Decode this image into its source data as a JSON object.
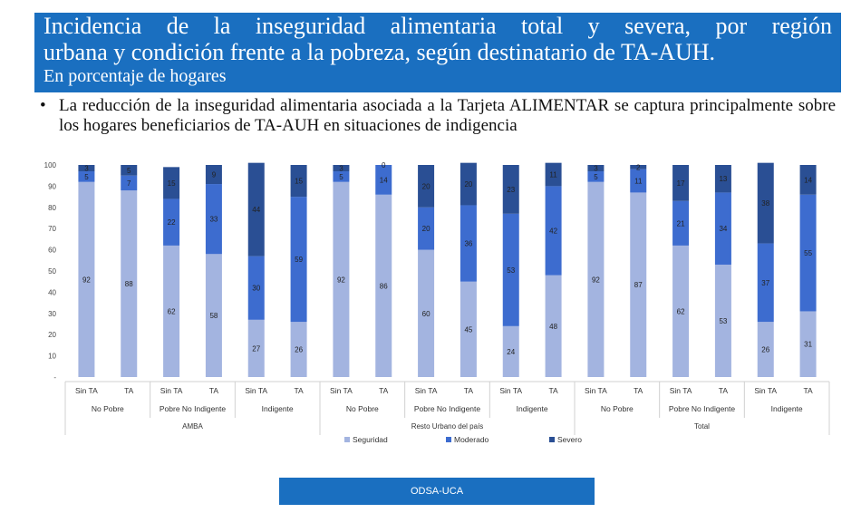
{
  "header": {
    "title_line1": "Incidencia de la inseguridad alimentaria total y severa, por región",
    "title_line2": "urbana y condición frente a la pobreza, según destinatario de TA-AUH.",
    "subtitle": "En porcentaje de hogares"
  },
  "bullet": {
    "marker": "•",
    "text_part1": "La reducción de la inseguridad alimentaria asociada a la Tarjeta ",
    "text_bold1": "ALIMENTAR",
    "text_part2": " se captura principalmente sobre los hogares beneficiarios de ",
    "text_bold2": "TA-AUH",
    "text_part3": " en situaciones de indigencia"
  },
  "chart_data": {
    "type": "bar",
    "stacked": true,
    "y_ticks": [
      "100",
      "90",
      "80",
      "70",
      "60",
      "50",
      "40",
      "30",
      "20",
      "10",
      "-"
    ],
    "ylim": [
      0,
      100
    ],
    "categories": [
      "Sin TA",
      "TA",
      "Sin TA",
      "TA",
      "Sin TA",
      "TA",
      "Sin TA",
      "TA",
      "Sin TA",
      "TA",
      "Sin TA",
      "TA",
      "Sin TA",
      "TA",
      "Sin TA",
      "TA",
      "Sin TA",
      "TA"
    ],
    "groups": [
      "No Pobre",
      "Pobre No Indigente",
      "Indigente",
      "No Pobre",
      "Pobre No Indigente",
      "Indigente",
      "No Pobre",
      "Pobre No Indigente",
      "Indigente"
    ],
    "regions": [
      "AMBA",
      "Resto Urbano del país",
      "Total"
    ],
    "series": [
      {
        "name": "Seguridad",
        "color": "#a3b4e0",
        "values": [
          92,
          88,
          62,
          58,
          27,
          26,
          92,
          86,
          60,
          45,
          24,
          48,
          92,
          87,
          62,
          53,
          26,
          31
        ]
      },
      {
        "name": "Moderado",
        "color": "#3d6ccf",
        "values": [
          5,
          7,
          22,
          33,
          30,
          59,
          5,
          14,
          20,
          36,
          53,
          42,
          5,
          11,
          21,
          34,
          37,
          55
        ]
      },
      {
        "name": "Severo",
        "color": "#2a4f94",
        "values": [
          3,
          5,
          15,
          9,
          44,
          15,
          3,
          0,
          20,
          20,
          23,
          11,
          3,
          2,
          17,
          13,
          38,
          14
        ]
      }
    ],
    "grid": false,
    "legend_position": "bottom"
  },
  "footer": {
    "label": "ODSA-UCA"
  }
}
